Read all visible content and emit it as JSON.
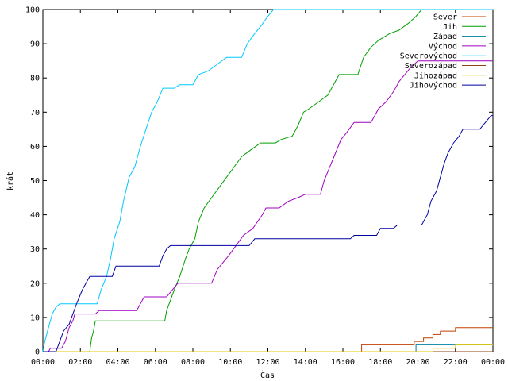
{
  "chart_data": {
    "type": "line",
    "xlabel": "Čas",
    "ylabel": "krát",
    "xlim": [
      0,
      24
    ],
    "ylim": [
      0,
      100
    ],
    "x_tick_labels": [
      "00:00",
      "02:00",
      "04:00",
      "06:00",
      "08:00",
      "10:00",
      "12:00",
      "14:00",
      "16:00",
      "18:00",
      "20:00",
      "22:00",
      "00:00"
    ],
    "y_tick_labels": [
      "0",
      "10",
      "20",
      "30",
      "40",
      "50",
      "60",
      "70",
      "80",
      "90",
      "100"
    ],
    "legend_position": "top-right",
    "series": [
      {
        "name": "Sever",
        "color": "#c04000",
        "points": [
          [
            0,
            0
          ],
          [
            17.0,
            0
          ],
          [
            17.0,
            2
          ],
          [
            19.8,
            2
          ],
          [
            19.8,
            3
          ],
          [
            20.3,
            3
          ],
          [
            20.3,
            4
          ],
          [
            20.8,
            4
          ],
          [
            20.8,
            5
          ],
          [
            21.2,
            5
          ],
          [
            21.2,
            6
          ],
          [
            22.0,
            6
          ],
          [
            22.0,
            7
          ],
          [
            24,
            7
          ]
        ]
      },
      {
        "name": "Jih",
        "color": "#00a000",
        "points": [
          [
            0,
            0
          ],
          [
            2.5,
            0
          ],
          [
            2.55,
            2
          ],
          [
            2.6,
            4
          ],
          [
            2.7,
            6
          ],
          [
            2.8,
            9
          ],
          [
            6.5,
            9
          ],
          [
            6.6,
            12
          ],
          [
            6.8,
            15
          ],
          [
            7.0,
            18
          ],
          [
            7.3,
            22
          ],
          [
            7.6,
            27
          ],
          [
            7.8,
            30
          ],
          [
            8.1,
            33
          ],
          [
            8.3,
            38
          ],
          [
            8.6,
            42
          ],
          [
            9.0,
            45
          ],
          [
            9.4,
            48
          ],
          [
            9.8,
            51
          ],
          [
            10.2,
            54
          ],
          [
            10.6,
            57
          ],
          [
            11.1,
            59
          ],
          [
            11.6,
            61
          ],
          [
            12.4,
            61
          ],
          [
            12.7,
            62
          ],
          [
            13.3,
            63
          ],
          [
            13.6,
            66
          ],
          [
            13.9,
            70
          ],
          [
            14.2,
            71
          ],
          [
            14.7,
            73
          ],
          [
            15.2,
            75
          ],
          [
            15.5,
            78
          ],
          [
            15.8,
            81
          ],
          [
            16.8,
            81
          ],
          [
            17.1,
            86
          ],
          [
            17.5,
            89
          ],
          [
            17.9,
            91
          ],
          [
            18.5,
            93
          ],
          [
            19.0,
            94
          ],
          [
            19.5,
            96
          ],
          [
            19.9,
            98
          ],
          [
            20.2,
            100
          ],
          [
            24,
            100
          ]
        ]
      },
      {
        "name": "Západ",
        "color": "#0080a0",
        "points": [
          [
            0,
            0
          ],
          [
            19.9,
            0
          ],
          [
            19.9,
            2
          ],
          [
            24,
            2
          ]
        ]
      },
      {
        "name": "Východ",
        "color": "#a000c0",
        "points": [
          [
            0,
            0
          ],
          [
            0.3,
            0
          ],
          [
            0.4,
            1
          ],
          [
            1.0,
            1
          ],
          [
            1.2,
            3
          ],
          [
            1.4,
            7
          ],
          [
            1.6,
            9
          ],
          [
            1.7,
            11
          ],
          [
            2.8,
            11
          ],
          [
            3.0,
            12
          ],
          [
            5.0,
            12
          ],
          [
            5.2,
            14
          ],
          [
            5.4,
            16
          ],
          [
            6.6,
            16
          ],
          [
            6.9,
            18
          ],
          [
            7.2,
            20
          ],
          [
            9.0,
            20
          ],
          [
            9.3,
            24
          ],
          [
            9.6,
            26
          ],
          [
            9.9,
            28
          ],
          [
            10.3,
            31
          ],
          [
            10.7,
            34
          ],
          [
            11.2,
            36
          ],
          [
            11.7,
            40
          ],
          [
            11.9,
            42
          ],
          [
            12.6,
            42
          ],
          [
            13.1,
            44
          ],
          [
            13.6,
            45
          ],
          [
            14.0,
            46
          ],
          [
            14.8,
            46
          ],
          [
            15.0,
            50
          ],
          [
            15.3,
            54
          ],
          [
            15.6,
            58
          ],
          [
            15.9,
            62
          ],
          [
            16.2,
            64
          ],
          [
            16.6,
            67
          ],
          [
            17.5,
            67
          ],
          [
            17.7,
            69
          ],
          [
            17.9,
            71
          ],
          [
            18.3,
            73
          ],
          [
            18.7,
            76
          ],
          [
            19.0,
            79
          ],
          [
            19.3,
            81
          ],
          [
            19.6,
            83
          ],
          [
            20.0,
            85
          ],
          [
            24,
            85
          ]
        ]
      },
      {
        "name": "Severovýchod",
        "color": "#00c8ff",
        "points": [
          [
            0,
            0
          ],
          [
            0.1,
            3
          ],
          [
            0.3,
            7
          ],
          [
            0.5,
            11
          ],
          [
            0.7,
            13
          ],
          [
            0.9,
            14
          ],
          [
            2.9,
            14
          ],
          [
            3.1,
            18
          ],
          [
            3.4,
            22
          ],
          [
            3.6,
            27
          ],
          [
            3.8,
            33
          ],
          [
            4.1,
            38
          ],
          [
            4.3,
            44
          ],
          [
            4.6,
            51
          ],
          [
            4.9,
            54
          ],
          [
            5.2,
            60
          ],
          [
            5.5,
            65
          ],
          [
            5.8,
            70
          ],
          [
            6.1,
            73
          ],
          [
            6.4,
            77
          ],
          [
            7.0,
            77
          ],
          [
            7.3,
            78
          ],
          [
            8.0,
            78
          ],
          [
            8.3,
            81
          ],
          [
            8.8,
            82
          ],
          [
            9.3,
            84
          ],
          [
            9.8,
            86
          ],
          [
            10.6,
            86
          ],
          [
            10.9,
            90
          ],
          [
            11.3,
            93
          ],
          [
            11.6,
            95
          ],
          [
            12.0,
            98
          ],
          [
            12.3,
            100
          ],
          [
            24,
            100
          ]
        ]
      },
      {
        "name": "Severozápad",
        "color": "#8b4513",
        "points": [
          [
            0,
            0
          ],
          [
            24,
            0
          ]
        ]
      },
      {
        "name": "Jihozápad",
        "color": "#e6c800",
        "points": [
          [
            0,
            0
          ],
          [
            20.8,
            0
          ],
          [
            20.8,
            1
          ],
          [
            22.0,
            1
          ],
          [
            22.0,
            2
          ],
          [
            24,
            2
          ]
        ]
      },
      {
        "name": "Jihovýchod",
        "color": "#0000a0",
        "points": [
          [
            0,
            0
          ],
          [
            0.7,
            0
          ],
          [
            0.9,
            3
          ],
          [
            1.1,
            6
          ],
          [
            1.4,
            8
          ],
          [
            1.6,
            11
          ],
          [
            1.8,
            14
          ],
          [
            2.1,
            18
          ],
          [
            2.3,
            20
          ],
          [
            2.5,
            22
          ],
          [
            3.7,
            22
          ],
          [
            3.9,
            25
          ],
          [
            6.2,
            25
          ],
          [
            6.4,
            28
          ],
          [
            6.6,
            30
          ],
          [
            6.8,
            31
          ],
          [
            11.0,
            31
          ],
          [
            11.3,
            33
          ],
          [
            16.4,
            33
          ],
          [
            16.6,
            34
          ],
          [
            17.8,
            34
          ],
          [
            18.0,
            36
          ],
          [
            18.7,
            36
          ],
          [
            18.9,
            37
          ],
          [
            20.2,
            37
          ],
          [
            20.5,
            40
          ],
          [
            20.7,
            44
          ],
          [
            21.0,
            47
          ],
          [
            21.2,
            51
          ],
          [
            21.4,
            55
          ],
          [
            21.6,
            58
          ],
          [
            21.9,
            61
          ],
          [
            22.2,
            63
          ],
          [
            22.4,
            65
          ],
          [
            23.3,
            65
          ],
          [
            23.6,
            67
          ],
          [
            23.9,
            69
          ],
          [
            24,
            69
          ]
        ]
      }
    ]
  }
}
